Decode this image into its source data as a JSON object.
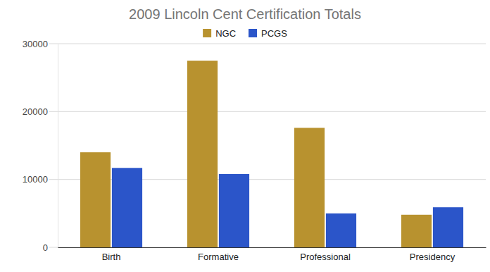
{
  "chart_data": {
    "type": "bar",
    "title": "2009 Lincoln Cent Certification Totals",
    "categories": [
      "Birth",
      "Formative",
      "Professional",
      "Presidency"
    ],
    "series": [
      {
        "name": "NGC",
        "color": "#b8922f",
        "values": [
          14000,
          27500,
          17600,
          4800
        ]
      },
      {
        "name": "PCGS",
        "color": "#2b55c9",
        "values": [
          11700,
          10800,
          5000,
          5900
        ]
      }
    ],
    "ylim": [
      0,
      30000
    ],
    "yticks": [
      0,
      10000,
      20000,
      30000
    ],
    "grid": true,
    "legend": "top"
  }
}
